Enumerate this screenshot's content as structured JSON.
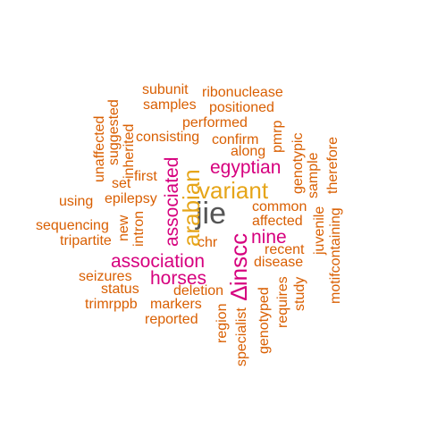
{
  "colors": {
    "orange": "#d95f02",
    "magenta": "#d6007e",
    "gold": "#e6a519",
    "gray": "#555555",
    "background": "#ffffff"
  },
  "words": {
    "subunit": "subunit",
    "ribonuclease": "ribonuclease",
    "samples": "samples",
    "positioned": "positioned",
    "performed": "performed",
    "consisting": "consisting",
    "confirm": "confirm",
    "along": "along",
    "egyptian": "egyptian",
    "first": "first",
    "set": "set",
    "variant": "variant",
    "epilepsy": "epilepsy",
    "using": "using",
    "jie": "jie",
    "common": "common",
    "affected": "affected",
    "sequencing": "sequencing",
    "nine": "nine",
    "chr": "chr",
    "tripartite": "tripartite",
    "recent": "recent",
    "association": "association",
    "disease": "disease",
    "seizures": "seizures",
    "horses": "horses",
    "status": "status",
    "deletion": "deletion",
    "trimrppb": "trimrppb",
    "markers": "markers",
    "reported": "reported",
    "unaffected": "unaffected",
    "suggested": "suggested",
    "inherited": "inherited",
    "new": "new",
    "intron": "intron",
    "associated": "associated",
    "arabian": "arabian",
    "pmrp": "pmrp",
    "genotypic": "genotypic",
    "sample": "sample",
    "therefore": "therefore",
    "juvenile": "juvenile",
    "motifcontaining": "motifcontaining",
    "inscc": "∆inscc",
    "region": "region",
    "specialist": "specialist",
    "genotyped": "genotyped",
    "requires": "requires",
    "study": "study"
  }
}
